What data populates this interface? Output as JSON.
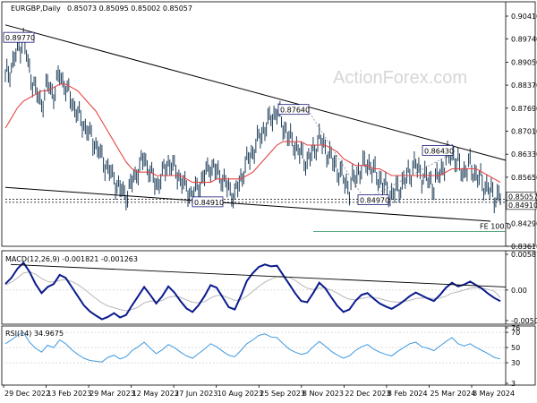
{
  "watermark": "ActionForex.com",
  "chart_data": [
    {
      "type": "bar",
      "panel": "price",
      "header": {
        "symbol_tf": "EURGBP,Daily",
        "ohlc": "0.85073 0.85095 0.85002 0.85057"
      },
      "yaxis_ticks": [
        "0.90410",
        "0.89740",
        "0.89050",
        "0.88370",
        "0.87690",
        "0.87010",
        "0.86330",
        "0.85650",
        "0.84970",
        "0.84290",
        "0.83610"
      ],
      "ylim": [
        0.8361,
        0.9041
      ],
      "last_price": "0.85057",
      "annotations": [
        {
          "label": "0.89770",
          "value": 0.8977
        },
        {
          "label": "0.87640",
          "value": 0.8764
        },
        {
          "label": "0.86430",
          "value": 0.8643
        },
        {
          "label": "0.84970",
          "value": 0.8497
        },
        {
          "label": "0.84910",
          "value": 0.8491
        },
        {
          "label": "0.84910",
          "value": 0.8491
        }
      ],
      "fe_label": "FE 100.0",
      "dates": [
        "29 Dec 2022",
        "13 Feb 2023",
        "29 Mar 2023",
        "12 May 2023",
        "27 Jun 2023",
        "10 Aug 2023",
        "25 Sep 2023",
        "8 Nov 2023",
        "22 Dec 2023",
        "8 Feb 2024",
        "25 Mar 2024",
        "8 May 2024"
      ],
      "close_series": [
        0.886,
        0.889,
        0.894,
        0.897,
        0.888,
        0.882,
        0.878,
        0.884,
        0.881,
        0.887,
        0.883,
        0.879,
        0.875,
        0.872,
        0.869,
        0.866,
        0.862,
        0.859,
        0.856,
        0.853,
        0.851,
        0.855,
        0.859,
        0.862,
        0.858,
        0.854,
        0.857,
        0.861,
        0.859,
        0.856,
        0.853,
        0.851,
        0.854,
        0.857,
        0.86,
        0.858,
        0.856,
        0.853,
        0.851,
        0.856,
        0.861,
        0.864,
        0.868,
        0.871,
        0.874,
        0.876,
        0.872,
        0.868,
        0.866,
        0.863,
        0.861,
        0.864,
        0.868,
        0.865,
        0.862,
        0.859,
        0.856,
        0.853,
        0.857,
        0.859,
        0.861,
        0.858,
        0.856,
        0.853,
        0.851,
        0.853,
        0.855,
        0.858,
        0.86,
        0.857,
        0.856,
        0.854,
        0.858,
        0.861,
        0.864,
        0.86,
        0.858,
        0.86,
        0.857,
        0.855,
        0.853,
        0.851,
        0.8506
      ],
      "ma_series": [
        0.871,
        0.874,
        0.877,
        0.879,
        0.88,
        0.881,
        0.882,
        0.882,
        0.883,
        0.884,
        0.884,
        0.883,
        0.882,
        0.88,
        0.878,
        0.876,
        0.873,
        0.87,
        0.867,
        0.864,
        0.861,
        0.859,
        0.858,
        0.858,
        0.858,
        0.857,
        0.857,
        0.857,
        0.857,
        0.857,
        0.856,
        0.855,
        0.855,
        0.855,
        0.855,
        0.856,
        0.856,
        0.856,
        0.856,
        0.856,
        0.857,
        0.858,
        0.86,
        0.862,
        0.864,
        0.866,
        0.867,
        0.867,
        0.867,
        0.867,
        0.866,
        0.866,
        0.866,
        0.866,
        0.865,
        0.864,
        0.862,
        0.861,
        0.86,
        0.86,
        0.86,
        0.859,
        0.859,
        0.858,
        0.857,
        0.857,
        0.857,
        0.857,
        0.857,
        0.857,
        0.857,
        0.857,
        0.857,
        0.858,
        0.859,
        0.859,
        0.859,
        0.859,
        0.859,
        0.858,
        0.857,
        0.856,
        0.855
      ],
      "colors": {
        "bars": "#1b3c58",
        "ma": "#e64444",
        "trend": "#000000"
      }
    },
    {
      "type": "line",
      "panel": "macd",
      "header": "MACD(12,26,9) -0.001821 -0.001263",
      "yaxis_ticks": [
        "0.00587",
        "0.00",
        "-0.005021"
      ],
      "ylim": [
        -0.005021,
        0.00587
      ],
      "series": [
        {
          "name": "MACD",
          "values": [
            0.001,
            0.002,
            0.0035,
            0.0045,
            0.003,
            0.001,
            -0.0005,
            0.0005,
            0.001,
            0.0025,
            0.002,
            0.0005,
            -0.001,
            -0.0025,
            -0.0035,
            -0.0042,
            -0.0048,
            -0.0044,
            -0.0038,
            -0.0045,
            -0.0041,
            -0.0025,
            -0.001,
            0.0005,
            -0.0008,
            -0.0022,
            -0.001,
            0.0006,
            -0.0004,
            -0.0018,
            -0.003,
            -0.0036,
            -0.0025,
            -0.001,
            0.0008,
            0.0004,
            -0.0012,
            -0.0028,
            -0.0032,
            -0.001,
            0.0015,
            0.0028,
            0.0038,
            0.0042,
            0.0039,
            0.004,
            0.0025,
            0.001,
            -0.0005,
            -0.0018,
            -0.002,
            -0.0005,
            0.0012,
            0.0003,
            -0.0012,
            -0.0026,
            -0.0036,
            -0.0032,
            -0.0018,
            -0.0008,
            -0.0005,
            -0.0014,
            -0.0022,
            -0.0027,
            -0.0031,
            -0.0025,
            -0.0018,
            -0.001,
            -0.0004,
            -0.0009,
            -0.0014,
            -0.0018,
            -0.0008,
            0.0004,
            0.0012,
            0.0006,
            0.0009,
            0.0014,
            0.0008,
            0.0002,
            -0.0006,
            -0.0013,
            -0.00182
          ],
          "color": "#0a1a8c"
        },
        {
          "name": "Signal",
          "values": [
            0.0008,
            0.0013,
            0.002,
            0.0028,
            0.003,
            0.0026,
            0.0019,
            0.0014,
            0.0013,
            0.0016,
            0.0017,
            0.0014,
            0.0009,
            0.0002,
            -0.0006,
            -0.0014,
            -0.0021,
            -0.0026,
            -0.0029,
            -0.0032,
            -0.0034,
            -0.0032,
            -0.0028,
            -0.0021,
            -0.0018,
            -0.0019,
            -0.0017,
            -0.0012,
            -0.001,
            -0.0012,
            -0.0016,
            -0.002,
            -0.0021,
            -0.0019,
            -0.0013,
            -0.0009,
            -0.0009,
            -0.0013,
            -0.0017,
            -0.0016,
            -0.001,
            -0.0002,
            0.0006,
            0.0013,
            0.0018,
            0.0022,
            0.0023,
            0.0021,
            0.0016,
            0.0009,
            0.0003,
            0.0001,
            0.0003,
            0.0003,
            0.0,
            -0.0005,
            -0.0011,
            -0.0015,
            -0.0016,
            -0.0014,
            -0.0012,
            -0.0012,
            -0.0014,
            -0.0017,
            -0.0019,
            -0.002,
            -0.0019,
            -0.0017,
            -0.0014,
            -0.0013,
            -0.0013,
            -0.0014,
            -0.0013,
            -0.001,
            -0.0005,
            -0.0003,
            0.0,
            0.0003,
            0.0004,
            0.0003,
            0.0001,
            -0.0002,
            -0.00126
          ],
          "color": "#b8b8b8"
        }
      ]
    },
    {
      "type": "line",
      "panel": "rsi",
      "header": "RSI(14) 34.9675",
      "yaxis_ticks": [
        "76",
        "70",
        "50",
        "30",
        "3"
      ],
      "ylim": [
        3,
        76
      ],
      "series": [
        {
          "name": "RSI",
          "values": [
            55,
            60,
            66,
            70,
            57,
            49,
            44,
            53,
            50,
            60,
            55,
            47,
            41,
            36,
            33,
            32,
            31,
            37,
            40,
            35,
            38,
            46,
            51,
            57,
            49,
            42,
            47,
            54,
            50,
            44,
            39,
            36,
            42,
            48,
            55,
            51,
            45,
            40,
            38,
            46,
            55,
            60,
            66,
            68,
            64,
            63,
            55,
            48,
            44,
            41,
            43,
            51,
            58,
            52,
            45,
            40,
            36,
            39,
            46,
            51,
            54,
            48,
            44,
            41,
            39,
            45,
            50,
            55,
            57,
            51,
            49,
            46,
            52,
            58,
            63,
            55,
            52,
            55,
            50,
            46,
            42,
            37,
            35
          ],
          "color": "#3f9ae0"
        }
      ]
    }
  ]
}
